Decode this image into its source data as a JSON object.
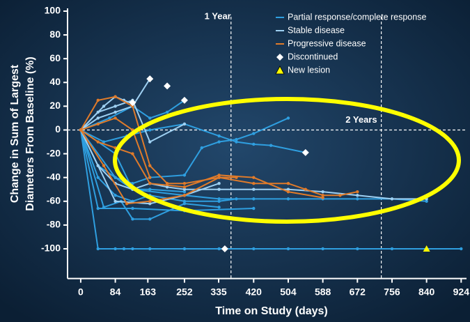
{
  "chart_data": {
    "type": "line",
    "ylabel": [
      "Change in Sum of Largest",
      "Diameters From Baseline (%)"
    ],
    "xlabel": "Time on Study (days)",
    "xlim": [
      -32,
      937
    ],
    "ylim": [
      -125,
      100
    ],
    "xticks": [
      0,
      84,
      163,
      252,
      335,
      420,
      504,
      588,
      672,
      756,
      840,
      924
    ],
    "yticks": [
      100,
      80,
      60,
      40,
      20,
      0,
      -20,
      -40,
      -60,
      -80,
      -100
    ],
    "reference_lines": [
      {
        "x": 365,
        "label": "1 Year"
      },
      {
        "x": 730,
        "label": "2 Years"
      }
    ],
    "zero_line": 0,
    "legend": [
      {
        "label": "Partial response/complete response",
        "color": "#2f9fe0",
        "marker": "line"
      },
      {
        "label": "Stable disease",
        "color": "#9ed0f2",
        "marker": "line"
      },
      {
        "label": "Progressive disease",
        "color": "#e07b2a",
        "marker": "line"
      },
      {
        "label": "Discontinued",
        "color": "#ffffff",
        "marker": "diamond"
      },
      {
        "label": "New lesion",
        "color": "#ffff00",
        "marker": "triangle"
      }
    ],
    "series": [
      {
        "color": "#2f9fe0",
        "x": [
          0,
          42,
          84,
          105,
          126,
          168,
          252,
          336,
          420,
          504,
          588,
          672,
          756,
          840,
          924
        ],
        "values": [
          0,
          -100,
          -100,
          -100,
          -100,
          -100,
          -100,
          -100,
          -100,
          -100,
          -100,
          -100,
          -100,
          -100,
          -100
        ]
      },
      {
        "color": "#2f9fe0",
        "x": [
          0,
          84,
          126,
          252,
          336,
          420,
          504,
          588,
          672,
          756,
          840
        ],
        "values": [
          0,
          -40,
          -50,
          -55,
          -58,
          -58,
          -58,
          -58,
          -58,
          -58,
          -60
        ]
      },
      {
        "color": "#2f9fe0",
        "x": [
          0,
          42,
          84,
          126,
          168,
          252,
          294,
          336,
          378,
          420,
          504
        ],
        "values": [
          0,
          -30,
          -40,
          -45,
          -40,
          -38,
          -15,
          -10,
          -8,
          -3,
          10
        ]
      },
      {
        "color": "#2f9fe0",
        "x": [
          0,
          56,
          112,
          168,
          252,
          336,
          378,
          420,
          462,
          546
        ],
        "values": [
          0,
          -10,
          -5,
          0,
          5,
          -5,
          -10,
          -12,
          -13,
          -19
        ]
      },
      {
        "color": "#2f9fe0",
        "x": [
          0,
          70,
          126,
          168,
          210,
          252
        ],
        "values": [
          0,
          10,
          20,
          10,
          15,
          25
        ]
      },
      {
        "color": "#2f9fe0",
        "x": [
          0,
          42,
          84,
          126,
          168,
          252,
          336,
          378
        ],
        "values": [
          0,
          -40,
          -55,
          -60,
          -55,
          -60,
          -60,
          -58
        ]
      },
      {
        "color": "#2f9fe0",
        "x": [
          0,
          56,
          98,
          126,
          168,
          252,
          336
        ],
        "values": [
          0,
          -65,
          -60,
          -75,
          -75,
          -62,
          -65
        ]
      },
      {
        "color": "#2f9fe0",
        "x": [
          0,
          42,
          126,
          252,
          420
        ],
        "values": [
          0,
          -66,
          -66,
          -68,
          -66
        ]
      },
      {
        "color": "#2f9fe0",
        "x": [
          0,
          84,
          126,
          168,
          252
        ],
        "values": [
          0,
          -20,
          -50,
          -50,
          -52
        ]
      },
      {
        "color": "#9ed0f2",
        "x": [
          0,
          42,
          84,
          126,
          168
        ],
        "values": [
          0,
          10,
          15,
          20,
          43
        ]
      },
      {
        "color": "#9ed0f2",
        "x": [
          0,
          42,
          84,
          126,
          168,
          252
        ],
        "values": [
          0,
          15,
          20,
          25,
          -10,
          5
        ]
      },
      {
        "color": "#9ed0f2",
        "x": [
          0,
          42,
          84,
          126,
          168,
          210,
          252,
          336,
          420,
          504,
          588,
          672,
          756,
          840
        ],
        "values": [
          0,
          -30,
          -45,
          -50,
          -45,
          -48,
          -50,
          -50,
          -50,
          -50,
          -52,
          -55,
          -58,
          -58
        ]
      },
      {
        "color": "#9ed0f2",
        "x": [
          0,
          56,
          84,
          105,
          126
        ],
        "values": [
          0,
          20,
          28,
          25,
          22
        ]
      },
      {
        "color": "#9ed0f2",
        "x": [
          0,
          84,
          168,
          252,
          336
        ],
        "values": [
          0,
          -60,
          -62,
          -55,
          -45
        ]
      },
      {
        "color": "#e07b2a",
        "x": [
          0,
          42,
          84,
          126,
          168,
          210,
          252,
          336,
          420,
          504,
          546,
          588,
          630,
          672
        ],
        "values": [
          0,
          25,
          28,
          20,
          -30,
          -45,
          -45,
          -40,
          -45,
          -45,
          -50,
          -55,
          -55,
          -52
        ]
      },
      {
        "color": "#e07b2a",
        "x": [
          0,
          42,
          84,
          126,
          168,
          252,
          336,
          420,
          504,
          588
        ],
        "values": [
          0,
          -10,
          -15,
          -20,
          -45,
          -48,
          -38,
          -40,
          -52,
          -57
        ]
      },
      {
        "color": "#e07b2a",
        "x": [
          0,
          56,
          112,
          168,
          252,
          336,
          378
        ],
        "values": [
          0,
          -30,
          -62,
          -60,
          -55,
          -40,
          -40
        ]
      },
      {
        "color": "#e07b2a",
        "x": [
          0,
          42,
          84,
          126,
          168
        ],
        "values": [
          0,
          5,
          10,
          0,
          -40
        ]
      }
    ],
    "discontinued": {
      "x": [
        168,
        210,
        252,
        126,
        350,
        546
      ],
      "values": [
        43,
        37,
        25,
        23,
        -100,
        -19
      ]
    },
    "new_lesion": {
      "x": [
        840
      ],
      "values": [
        -100
      ]
    }
  }
}
